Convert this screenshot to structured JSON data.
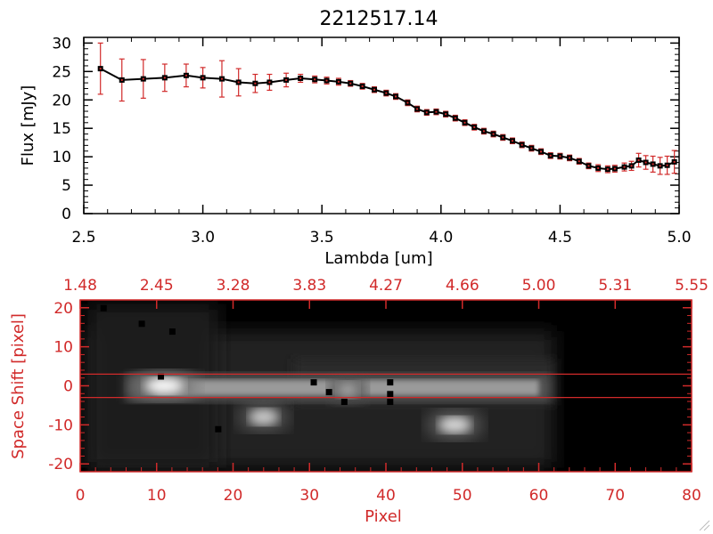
{
  "title": "2212517.14",
  "colors": {
    "black": "#000000",
    "red": "#d12a2a",
    "white": "#ffffff",
    "dark": "#000000"
  },
  "chart_data": [
    {
      "type": "line",
      "title": "2212517.14",
      "xlabel": "Lambda [um]",
      "ylabel": "Flux [mJy]",
      "xlim": [
        2.5,
        5.0
      ],
      "ylim": [
        0,
        31
      ],
      "xticks": [
        "2.5",
        "3.0",
        "3.5",
        "4.0",
        "4.5",
        "5.0"
      ],
      "yticks": [
        "0",
        "5",
        "10",
        "15",
        "20",
        "25",
        "30"
      ],
      "series": [
        {
          "x": [
            2.57,
            2.66,
            2.75,
            2.84,
            2.93,
            3.0,
            3.08,
            3.15,
            3.22,
            3.28,
            3.35,
            3.41,
            3.47,
            3.52,
            3.57,
            3.62,
            3.67,
            3.72,
            3.77,
            3.81,
            3.86,
            3.9,
            3.94,
            3.98,
            4.02,
            4.06,
            4.1,
            4.14,
            4.18,
            4.22,
            4.26,
            4.3,
            4.34,
            4.38,
            4.42,
            4.46,
            4.5,
            4.54,
            4.58,
            4.62,
            4.66,
            4.7,
            4.73,
            4.77,
            4.8,
            4.83,
            4.86,
            4.89,
            4.92,
            4.95,
            4.98
          ],
          "y": [
            25.5,
            23.5,
            23.7,
            23.9,
            24.3,
            23.9,
            23.7,
            23.1,
            22.9,
            23.1,
            23.5,
            23.8,
            23.6,
            23.4,
            23.2,
            22.9,
            22.4,
            21.8,
            21.2,
            20.6,
            19.5,
            18.4,
            17.8,
            17.9,
            17.5,
            16.8,
            16.0,
            15.2,
            14.5,
            14.0,
            13.4,
            12.8,
            12.1,
            11.5,
            10.9,
            10.2,
            10.1,
            9.8,
            9.2,
            8.4,
            8.0,
            7.8,
            7.9,
            8.2,
            8.4,
            9.4,
            9.0,
            8.7,
            8.4,
            8.5,
            9.1
          ],
          "error": [
            4.5,
            3.7,
            3.4,
            2.4,
            2.0,
            1.8,
            3.2,
            2.4,
            1.6,
            1.4,
            1.2,
            0.7,
            0.6,
            0.6,
            0.6,
            0.5,
            0.5,
            0.5,
            0.5,
            0.5,
            0.5,
            0.5,
            0.5,
            0.5,
            0.5,
            0.5,
            0.5,
            0.5,
            0.5,
            0.5,
            0.5,
            0.5,
            0.5,
            0.5,
            0.5,
            0.5,
            0.5,
            0.5,
            0.5,
            0.5,
            0.6,
            0.6,
            0.6,
            0.7,
            0.8,
            1.2,
            1.2,
            1.4,
            1.5,
            1.6,
            2.0
          ]
        }
      ]
    },
    {
      "type": "heatmap",
      "xlabel": "Pixel",
      "ylabel": "Space Shift [pixel]",
      "xlim": [
        0,
        80
      ],
      "ylim": [
        -22,
        22
      ],
      "xticks": [
        "0",
        "10",
        "20",
        "30",
        "40",
        "50",
        "60",
        "70",
        "80"
      ],
      "yticks": [
        "-20",
        "-10",
        "0",
        "10",
        "20"
      ],
      "top_ticks": [
        "1.48",
        "2.45",
        "3.28",
        "3.83",
        "4.27",
        "4.66",
        "5.00",
        "5.31",
        "5.55"
      ],
      "slit_lines": [
        3,
        -3
      ],
      "sources": [
        {
          "x": 11,
          "y": 0,
          "brightness": 1.0
        },
        {
          "x": 24,
          "y": -8,
          "brightness": 0.75
        },
        {
          "x": 49,
          "y": -10,
          "brightness": 0.82
        },
        {
          "x": 35,
          "y": -1,
          "brightness": 0.55
        }
      ]
    }
  ]
}
